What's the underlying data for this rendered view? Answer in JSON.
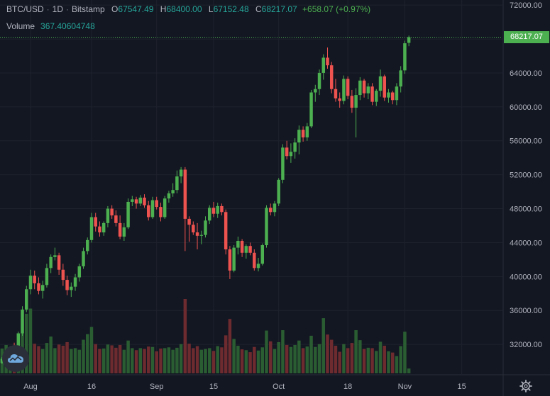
{
  "header": {
    "symbol": "BTC/USD",
    "interval": "1D",
    "exchange": "Bitstamp",
    "open_label": "O",
    "open": "67547.49",
    "high_label": "H",
    "high": "68400.00",
    "low_label": "L",
    "low": "67152.48",
    "close_label": "C",
    "close": "68217.07",
    "change": "+658.07 (+0.97%)",
    "volume_label": "Volume",
    "volume": "367.40604748"
  },
  "last_price_tag": "68217.07",
  "colors": {
    "background": "#131722",
    "up": "#4caf50",
    "down": "#ef5350",
    "up_volume": "#2b5d32",
    "down_volume": "#6e2b2f",
    "grid": "#1e222d",
    "text": "#b2b5be"
  },
  "icons": {
    "logo": "tradingview-cloud-icon",
    "settings": "gear-icon"
  },
  "chart_data": {
    "type": "candlestick",
    "title": "BTC/USD · 1D · Bitstamp",
    "y_ticks": [
      "72000.00",
      "68000.00",
      "64000.00",
      "60000.00",
      "56000.00",
      "52000.00",
      "48000.00",
      "44000.00",
      "40000.00",
      "36000.00",
      "32000.00"
    ],
    "y_range": [
      28500,
      72600
    ],
    "x_ticks": [
      {
        "label": "Aug",
        "day": 1
      },
      {
        "label": "16",
        "day": 16
      },
      {
        "label": "Sep",
        "day": 32
      },
      {
        "label": "15",
        "day": 46
      },
      {
        "label": "Oct",
        "day": 62
      },
      {
        "label": "18",
        "day": 79
      },
      {
        "label": "Nov",
        "day": 93
      },
      {
        "label": "15",
        "day": 107
      }
    ],
    "x_range_days": [
      -6.5,
      117
    ],
    "grid": true,
    "candles": [
      [
        -6,
        29800,
        30500,
        29700,
        30300
      ],
      [
        -5,
        30300,
        31300,
        30100,
        31000
      ],
      [
        -4,
        31000,
        31800,
        30800,
        31500
      ],
      [
        -3,
        31500,
        32200,
        30700,
        31200
      ],
      [
        -2,
        31200,
        33500,
        31000,
        33300
      ],
      [
        -1,
        33300,
        36500,
        33000,
        36100
      ],
      [
        0,
        36100,
        38900,
        35800,
        38500
      ],
      [
        1,
        38500,
        40800,
        37900,
        40100
      ],
      [
        2,
        40100,
        40700,
        38500,
        39200
      ],
      [
        3,
        39200,
        39900,
        37900,
        38300
      ],
      [
        4,
        38300,
        39500,
        37400,
        39000
      ],
      [
        5,
        39000,
        41500,
        38700,
        41000
      ],
      [
        6,
        41000,
        42600,
        40400,
        42300
      ],
      [
        7,
        42300,
        43400,
        41900,
        42500
      ],
      [
        8,
        42500,
        42800,
        40200,
        40800
      ],
      [
        9,
        40800,
        41500,
        38900,
        39600
      ],
      [
        10,
        39600,
        40100,
        37800,
        38400
      ],
      [
        11,
        38400,
        39300,
        37600,
        38800
      ],
      [
        12,
        38800,
        40300,
        38300,
        39900
      ],
      [
        13,
        39900,
        41500,
        39400,
        41200
      ],
      [
        14,
        41200,
        43400,
        40900,
        43000
      ],
      [
        15,
        43000,
        44600,
        42600,
        44300
      ],
      [
        16,
        44300,
        47500,
        44000,
        47000
      ],
      [
        17,
        47000,
        47500,
        45300,
        45900
      ],
      [
        18,
        45900,
        46500,
        44700,
        45200
      ],
      [
        19,
        45200,
        46500,
        44800,
        46300
      ],
      [
        20,
        46300,
        48300,
        45800,
        48000
      ],
      [
        21,
        48000,
        48400,
        46800,
        47200
      ],
      [
        22,
        47200,
        47800,
        45900,
        46300
      ],
      [
        23,
        46300,
        47200,
        44400,
        44700
      ],
      [
        24,
        44700,
        46300,
        44200,
        45800
      ],
      [
        25,
        45800,
        49200,
        45600,
        48800
      ],
      [
        26,
        48800,
        49500,
        48300,
        49100
      ],
      [
        27,
        49100,
        49400,
        48000,
        48600
      ],
      [
        28,
        48600,
        49600,
        48300,
        49300
      ],
      [
        29,
        49300,
        49700,
        48100,
        48400
      ],
      [
        30,
        48400,
        48900,
        46600,
        47000
      ],
      [
        31,
        47000,
        49400,
        46800,
        49000
      ],
      [
        32,
        49000,
        49400,
        47900,
        48200
      ],
      [
        33,
        48200,
        48700,
        46500,
        47000
      ],
      [
        34,
        47000,
        49500,
        46800,
        49200
      ],
      [
        35,
        49200,
        50100,
        48700,
        49800
      ],
      [
        36,
        49800,
        51000,
        49400,
        50200
      ],
      [
        37,
        50200,
        52500,
        49800,
        51800
      ],
      [
        38,
        51800,
        52900,
        51000,
        52600
      ],
      [
        39,
        52600,
        52900,
        43000,
        46800
      ],
      [
        40,
        46800,
        47100,
        44100,
        46100
      ],
      [
        41,
        46100,
        46500,
        44900,
        45200
      ],
      [
        42,
        45200,
        46300,
        43200,
        44800
      ],
      [
        43,
        44800,
        45400,
        43800,
        44900
      ],
      [
        44,
        44900,
        47100,
        44600,
        46600
      ],
      [
        45,
        46600,
        48400,
        46200,
        48100
      ],
      [
        46,
        48100,
        48800,
        47000,
        47400
      ],
      [
        47,
        47400,
        48700,
        46900,
        48300
      ],
      [
        48,
        48300,
        48600,
        47200,
        47600
      ],
      [
        49,
        47600,
        47900,
        42600,
        43200
      ],
      [
        50,
        43200,
        43600,
        39700,
        40700
      ],
      [
        51,
        40700,
        43700,
        40500,
        43400
      ],
      [
        52,
        43400,
        44700,
        42600,
        44200
      ],
      [
        53,
        44200,
        44400,
        42300,
        42800
      ],
      [
        54,
        42800,
        43800,
        42100,
        43600
      ],
      [
        55,
        43600,
        44000,
        42500,
        42800
      ],
      [
        56,
        42800,
        43200,
        40700,
        41000
      ],
      [
        57,
        41000,
        42200,
        40600,
        41500
      ],
      [
        58,
        41500,
        43900,
        41300,
        43700
      ],
      [
        59,
        43700,
        48400,
        43400,
        48100
      ],
      [
        60,
        48100,
        48600,
        47200,
        47600
      ],
      [
        61,
        47600,
        48900,
        47100,
        48600
      ],
      [
        62,
        48600,
        51600,
        48300,
        51400
      ],
      [
        63,
        51400,
        55600,
        51000,
        55200
      ],
      [
        64,
        55200,
        56000,
        53800,
        54200
      ],
      [
        65,
        54200,
        55700,
        53400,
        54700
      ],
      [
        66,
        54700,
        56300,
        53900,
        55800
      ],
      [
        67,
        55800,
        57800,
        54400,
        57300
      ],
      [
        68,
        57300,
        57700,
        55900,
        56400
      ],
      [
        69,
        56400,
        58100,
        56000,
        57700
      ],
      [
        70,
        57700,
        62000,
        57500,
        61700
      ],
      [
        71,
        61700,
        62600,
        60600,
        62100
      ],
      [
        72,
        62100,
        64400,
        61400,
        64000
      ],
      [
        73,
        64000,
        66200,
        63200,
        65800
      ],
      [
        74,
        65800,
        67000,
        64500,
        64900
      ],
      [
        75,
        64900,
        65300,
        61600,
        62100
      ],
      [
        76,
        62100,
        63300,
        60600,
        61000
      ],
      [
        77,
        61000,
        61700,
        59900,
        60700
      ],
      [
        78,
        60700,
        63700,
        60300,
        63300
      ],
      [
        79,
        63300,
        63600,
        60900,
        61300
      ],
      [
        80,
        61300,
        62000,
        59300,
        59900
      ],
      [
        81,
        59900,
        62200,
        56400,
        61400
      ],
      [
        82,
        61400,
        63500,
        60800,
        63100
      ],
      [
        83,
        63100,
        63300,
        61100,
        61600
      ],
      [
        84,
        61600,
        62800,
        60900,
        62400
      ],
      [
        85,
        62400,
        62800,
        60200,
        60600
      ],
      [
        86,
        60600,
        62100,
        60100,
        61900
      ],
      [
        87,
        61900,
        64400,
        61200,
        63600
      ],
      [
        88,
        63600,
        63800,
        60700,
        61100
      ],
      [
        89,
        61100,
        62100,
        60500,
        61700
      ],
      [
        90,
        61700,
        61900,
        60300,
        60800
      ],
      [
        91,
        60800,
        62800,
        60200,
        62400
      ],
      [
        92,
        62400,
        64800,
        61700,
        64300
      ],
      [
        93,
        64300,
        67800,
        63900,
        67500
      ],
      [
        94,
        67547,
        68400,
        67152,
        68217
      ]
    ],
    "volumes": [
      [
        -6,
        6200
      ],
      [
        -5,
        7100
      ],
      [
        -4,
        6400
      ],
      [
        -3,
        5800
      ],
      [
        -2,
        6900
      ],
      [
        -1,
        13500
      ],
      [
        0,
        14900
      ],
      [
        1,
        16200
      ],
      [
        2,
        7400
      ],
      [
        3,
        6800
      ],
      [
        4,
        6100
      ],
      [
        5,
        7600
      ],
      [
        6,
        9200
      ],
      [
        7,
        6300
      ],
      [
        8,
        7200
      ],
      [
        9,
        6900
      ],
      [
        10,
        7800
      ],
      [
        11,
        6100
      ],
      [
        12,
        6300
      ],
      [
        13,
        5900
      ],
      [
        14,
        8400
      ],
      [
        15,
        9800
      ],
      [
        16,
        11600
      ],
      [
        17,
        7300
      ],
      [
        18,
        6100
      ],
      [
        19,
        6200
      ],
      [
        20,
        7200
      ],
      [
        21,
        7000
      ],
      [
        22,
        6400
      ],
      [
        23,
        7100
      ],
      [
        24,
        5900
      ],
      [
        25,
        8200
      ],
      [
        26,
        6300
      ],
      [
        27,
        5800
      ],
      [
        28,
        6300
      ],
      [
        29,
        6100
      ],
      [
        30,
        6700
      ],
      [
        31,
        6600
      ],
      [
        32,
        5500
      ],
      [
        33,
        6200
      ],
      [
        34,
        6300
      ],
      [
        35,
        6500
      ],
      [
        36,
        5900
      ],
      [
        37,
        6400
      ],
      [
        38,
        7300
      ],
      [
        39,
        18600
      ],
      [
        40,
        7400
      ],
      [
        41,
        6300
      ],
      [
        42,
        6800
      ],
      [
        43,
        5900
      ],
      [
        44,
        6100
      ],
      [
        45,
        6300
      ],
      [
        46,
        5600
      ],
      [
        47,
        6800
      ],
      [
        48,
        6500
      ],
      [
        49,
        9500
      ],
      [
        50,
        13600
      ],
      [
        51,
        8600
      ],
      [
        52,
        6900
      ],
      [
        53,
        6000
      ],
      [
        54,
        5800
      ],
      [
        55,
        5300
      ],
      [
        56,
        6600
      ],
      [
        57,
        5700
      ],
      [
        58,
        6500
      ],
      [
        59,
        10700
      ],
      [
        60,
        8000
      ],
      [
        61,
        6100
      ],
      [
        62,
        7800
      ],
      [
        63,
        10800
      ],
      [
        64,
        7100
      ],
      [
        65,
        6600
      ],
      [
        66,
        7100
      ],
      [
        67,
        8200
      ],
      [
        68,
        6300
      ],
      [
        69,
        6700
      ],
      [
        70,
        9400
      ],
      [
        71,
        6600
      ],
      [
        72,
        7300
      ],
      [
        73,
        13800
      ],
      [
        74,
        9700
      ],
      [
        75,
        8400
      ],
      [
        76,
        6900
      ],
      [
        77,
        5400
      ],
      [
        78,
        7300
      ],
      [
        79,
        6300
      ],
      [
        80,
        7600
      ],
      [
        81,
        10800
      ],
      [
        82,
        8300
      ],
      [
        83,
        6100
      ],
      [
        84,
        6400
      ],
      [
        85,
        6300
      ],
      [
        86,
        5600
      ],
      [
        87,
        7900
      ],
      [
        88,
        6900
      ],
      [
        89,
        5500
      ],
      [
        90,
        5200
      ],
      [
        91,
        4300
      ],
      [
        92,
        6800
      ],
      [
        93,
        10400
      ],
      [
        94,
        1200
      ]
    ]
  }
}
